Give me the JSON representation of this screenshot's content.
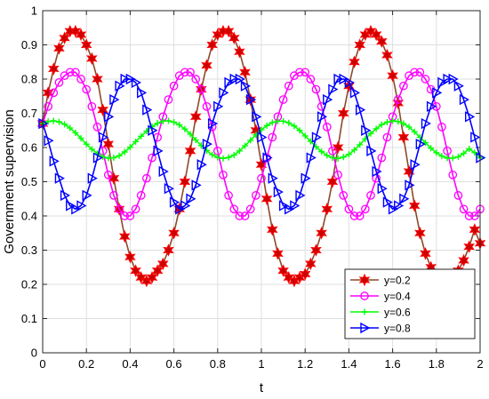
{
  "chart_data": {
    "type": "line",
    "xlabel": "t",
    "ylabel": "Government supervision",
    "xlim": [
      0,
      2
    ],
    "ylim": [
      0,
      1
    ],
    "xticks": [
      "0",
      "0.2",
      "0.4",
      "0.6",
      "0.8",
      "1",
      "1.2",
      "1.4",
      "1.6",
      "1.8",
      "2"
    ],
    "yticks": [
      "0",
      "0.1",
      "0.2",
      "0.3",
      "0.4",
      "0.5",
      "0.6",
      "0.7",
      "0.8",
      "0.9",
      "1"
    ],
    "grid": true,
    "legend_position": "bottom-right",
    "series": [
      {
        "name": "y=0.2",
        "color": "#ff0000",
        "marker": "hexagram",
        "marker_color": "#cc0000",
        "line_color": "#8c4a2a",
        "x": [
          0,
          0.025,
          0.05,
          0.075,
          0.1,
          0.125,
          0.15,
          0.175,
          0.2,
          0.225,
          0.25,
          0.275,
          0.3,
          0.325,
          0.35,
          0.375,
          0.4,
          0.425,
          0.45,
          0.475,
          0.5,
          0.525,
          0.55,
          0.575,
          0.6,
          0.625,
          0.65,
          0.675,
          0.7,
          0.725,
          0.75,
          0.775,
          0.8,
          0.825,
          0.85,
          0.875,
          0.9,
          0.925,
          0.95,
          0.975,
          1.0,
          1.025,
          1.05,
          1.075,
          1.1,
          1.125,
          1.15,
          1.175,
          1.2,
          1.225,
          1.25,
          1.275,
          1.3,
          1.325,
          1.35,
          1.375,
          1.4,
          1.425,
          1.45,
          1.475,
          1.5,
          1.525,
          1.55,
          1.575,
          1.6,
          1.625,
          1.65,
          1.675,
          1.7,
          1.725,
          1.75,
          1.775,
          1.8,
          1.825,
          1.85,
          1.875,
          1.9,
          1.925,
          1.95,
          1.975,
          2.0
        ],
        "y": [
          0.67,
          0.76,
          0.83,
          0.89,
          0.92,
          0.94,
          0.94,
          0.93,
          0.9,
          0.86,
          0.8,
          0.71,
          0.61,
          0.51,
          0.42,
          0.34,
          0.28,
          0.24,
          0.22,
          0.21,
          0.22,
          0.24,
          0.26,
          0.3,
          0.35,
          0.42,
          0.5,
          0.59,
          0.69,
          0.77,
          0.84,
          0.9,
          0.93,
          0.94,
          0.94,
          0.92,
          0.88,
          0.82,
          0.74,
          0.65,
          0.55,
          0.45,
          0.36,
          0.29,
          0.24,
          0.22,
          0.21,
          0.22,
          0.23,
          0.26,
          0.3,
          0.35,
          0.42,
          0.5,
          0.6,
          0.7,
          0.78,
          0.85,
          0.9,
          0.93,
          0.94,
          0.93,
          0.91,
          0.87,
          0.81,
          0.73,
          0.63,
          0.53,
          0.43,
          0.35,
          0.29,
          0.25,
          0.22,
          0.21,
          0.21,
          0.22,
          0.24,
          0.27,
          0.31,
          0.36,
          0.32
        ]
      },
      {
        "name": "y=0.4",
        "color": "#ff00ff",
        "marker": "circle",
        "x": [
          0,
          0.025,
          0.05,
          0.075,
          0.1,
          0.125,
          0.15,
          0.175,
          0.2,
          0.225,
          0.25,
          0.275,
          0.3,
          0.325,
          0.35,
          0.375,
          0.4,
          0.425,
          0.45,
          0.475,
          0.5,
          0.525,
          0.55,
          0.575,
          0.6,
          0.625,
          0.65,
          0.675,
          0.7,
          0.725,
          0.75,
          0.775,
          0.8,
          0.825,
          0.85,
          0.875,
          0.9,
          0.925,
          0.95,
          0.975,
          1.0,
          1.025,
          1.05,
          1.075,
          1.1,
          1.125,
          1.15,
          1.175,
          1.2,
          1.225,
          1.25,
          1.275,
          1.3,
          1.325,
          1.35,
          1.375,
          1.4,
          1.425,
          1.45,
          1.475,
          1.5,
          1.525,
          1.55,
          1.575,
          1.6,
          1.625,
          1.65,
          1.675,
          1.7,
          1.725,
          1.75,
          1.775,
          1.8,
          1.825,
          1.85,
          1.875,
          1.9,
          1.925,
          1.95,
          1.975,
          2.0
        ],
        "y": [
          0.67,
          0.72,
          0.76,
          0.79,
          0.81,
          0.82,
          0.82,
          0.8,
          0.77,
          0.72,
          0.66,
          0.59,
          0.52,
          0.46,
          0.42,
          0.4,
          0.4,
          0.42,
          0.46,
          0.51,
          0.57,
          0.63,
          0.69,
          0.74,
          0.78,
          0.81,
          0.82,
          0.82,
          0.8,
          0.77,
          0.72,
          0.66,
          0.59,
          0.52,
          0.46,
          0.42,
          0.4,
          0.4,
          0.42,
          0.46,
          0.51,
          0.57,
          0.63,
          0.69,
          0.74,
          0.78,
          0.81,
          0.82,
          0.82,
          0.8,
          0.77,
          0.72,
          0.66,
          0.59,
          0.52,
          0.46,
          0.42,
          0.4,
          0.4,
          0.42,
          0.46,
          0.51,
          0.57,
          0.63,
          0.69,
          0.74,
          0.78,
          0.81,
          0.82,
          0.82,
          0.8,
          0.77,
          0.72,
          0.66,
          0.59,
          0.52,
          0.46,
          0.42,
          0.4,
          0.4,
          0.42
        ]
      },
      {
        "name": "y=0.6",
        "color": "#00ff00",
        "marker": "plus",
        "x": [
          0,
          0.025,
          0.05,
          0.075,
          0.1,
          0.125,
          0.15,
          0.175,
          0.2,
          0.225,
          0.25,
          0.275,
          0.3,
          0.325,
          0.35,
          0.375,
          0.4,
          0.425,
          0.45,
          0.475,
          0.5,
          0.525,
          0.55,
          0.575,
          0.6,
          0.625,
          0.65,
          0.675,
          0.7,
          0.725,
          0.75,
          0.775,
          0.8,
          0.825,
          0.85,
          0.875,
          0.9,
          0.925,
          0.95,
          0.975,
          1.0,
          1.025,
          1.05,
          1.075,
          1.1,
          1.125,
          1.15,
          1.175,
          1.2,
          1.225,
          1.25,
          1.275,
          1.3,
          1.325,
          1.35,
          1.375,
          1.4,
          1.425,
          1.45,
          1.475,
          1.5,
          1.525,
          1.55,
          1.575,
          1.6,
          1.625,
          1.65,
          1.675,
          1.7,
          1.725,
          1.75,
          1.775,
          1.8,
          1.825,
          1.85,
          1.875,
          1.9,
          1.925,
          1.95,
          1.975,
          2.0
        ],
        "y": [
          0.67,
          0.676,
          0.678,
          0.675,
          0.668,
          0.657,
          0.643,
          0.627,
          0.61,
          0.595,
          0.582,
          0.573,
          0.569,
          0.57,
          0.576,
          0.587,
          0.601,
          0.617,
          0.633,
          0.648,
          0.661,
          0.671,
          0.677,
          0.678,
          0.674,
          0.666,
          0.654,
          0.639,
          0.622,
          0.606,
          0.591,
          0.579,
          0.571,
          0.568,
          0.571,
          0.578,
          0.59,
          0.605,
          0.621,
          0.637,
          0.652,
          0.664,
          0.673,
          0.677,
          0.677,
          0.672,
          0.663,
          0.65,
          0.634,
          0.618,
          0.602,
          0.588,
          0.577,
          0.57,
          0.568,
          0.572,
          0.58,
          0.593,
          0.608,
          0.625,
          0.641,
          0.655,
          0.667,
          0.674,
          0.678,
          0.676,
          0.67,
          0.66,
          0.646,
          0.63,
          0.614,
          0.598,
          0.585,
          0.575,
          0.569,
          0.569,
          0.573,
          0.583,
          0.596,
          0.585,
          0.57
        ]
      },
      {
        "name": "y=0.8",
        "color": "#0000ff",
        "marker": "triangle-right",
        "x": [
          0,
          0.025,
          0.05,
          0.075,
          0.1,
          0.125,
          0.15,
          0.175,
          0.2,
          0.225,
          0.25,
          0.275,
          0.3,
          0.325,
          0.35,
          0.375,
          0.4,
          0.425,
          0.45,
          0.475,
          0.5,
          0.525,
          0.55,
          0.575,
          0.6,
          0.625,
          0.65,
          0.675,
          0.7,
          0.725,
          0.75,
          0.775,
          0.8,
          0.825,
          0.85,
          0.875,
          0.9,
          0.925,
          0.95,
          0.975,
          1.0,
          1.025,
          1.05,
          1.075,
          1.1,
          1.125,
          1.15,
          1.175,
          1.2,
          1.225,
          1.25,
          1.275,
          1.3,
          1.325,
          1.35,
          1.375,
          1.4,
          1.425,
          1.45,
          1.475,
          1.5,
          1.525,
          1.55,
          1.575,
          1.6,
          1.625,
          1.65,
          1.675,
          1.7,
          1.725,
          1.75,
          1.775,
          1.8,
          1.825,
          1.85,
          1.875,
          1.9,
          1.925,
          1.95,
          1.975,
          2.0
        ],
        "y": [
          0.67,
          0.62,
          0.56,
          0.51,
          0.46,
          0.43,
          0.42,
          0.43,
          0.46,
          0.51,
          0.57,
          0.63,
          0.69,
          0.74,
          0.78,
          0.8,
          0.8,
          0.79,
          0.76,
          0.71,
          0.65,
          0.59,
          0.53,
          0.48,
          0.44,
          0.42,
          0.43,
          0.45,
          0.49,
          0.55,
          0.61,
          0.67,
          0.72,
          0.76,
          0.79,
          0.8,
          0.8,
          0.78,
          0.74,
          0.69,
          0.63,
          0.57,
          0.51,
          0.47,
          0.43,
          0.42,
          0.43,
          0.46,
          0.51,
          0.57,
          0.63,
          0.69,
          0.74,
          0.77,
          0.8,
          0.8,
          0.79,
          0.76,
          0.71,
          0.65,
          0.59,
          0.53,
          0.48,
          0.44,
          0.42,
          0.43,
          0.45,
          0.49,
          0.55,
          0.61,
          0.67,
          0.72,
          0.76,
          0.79,
          0.8,
          0.8,
          0.78,
          0.74,
          0.69,
          0.63,
          0.57
        ]
      }
    ]
  }
}
